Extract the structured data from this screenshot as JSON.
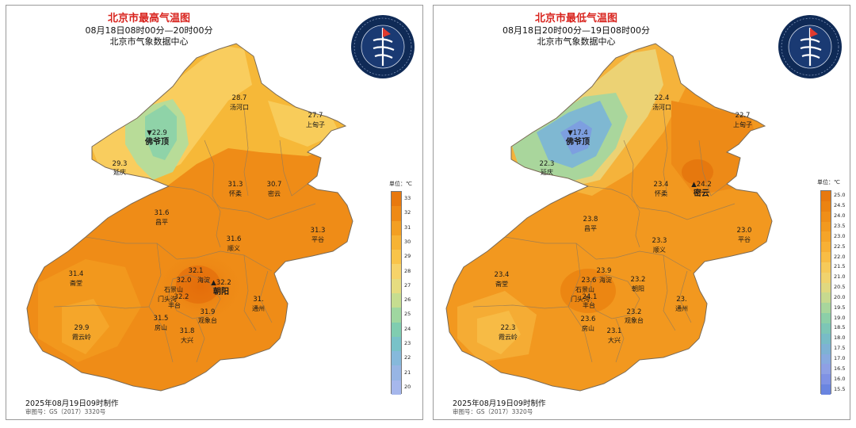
{
  "panels": [
    {
      "title": "北京市最高气温图",
      "subtitle": "08月18日08时00分—20时00分",
      "agency": "北京市气象数据中心",
      "made": "2025年08月19日09时制作",
      "review": "审图号：GS（2017）3320号",
      "legend_unit": "单位：℃",
      "legend_ticks": [
        "33",
        "32",
        "31",
        "30",
        "29",
        "28",
        "27",
        "26",
        "25",
        "24",
        "23",
        "22",
        "21",
        "20"
      ],
      "legend_colors": [
        "#e8790e",
        "#ee8a16",
        "#f39f22",
        "#f7b334",
        "#f9c44a",
        "#f6d36a",
        "#e6dc80",
        "#c6dd90",
        "#9fd7a0",
        "#80cdb0",
        "#78c2c8",
        "#86b9db",
        "#97b5e4",
        "#a6b7ec"
      ],
      "stations": [
        {
          "value": "28.7",
          "name": "汤河口"
        },
        {
          "value": "27.7",
          "name": "上甸子"
        },
        {
          "value": "▼22.9",
          "name": "佛爷顶"
        },
        {
          "value": "29.3",
          "name": "延庆"
        },
        {
          "value": "31.3",
          "name": "怀柔"
        },
        {
          "value": "30.7",
          "name": "密云"
        },
        {
          "value": "31.6",
          "name": "昌平"
        },
        {
          "value": "31.3",
          "name": "平谷"
        },
        {
          "value": "31.6",
          "name": "顺义"
        },
        {
          "value": "31.4",
          "name": "斋堂"
        },
        {
          "value": "32.1",
          "name": "海淀"
        },
        {
          "value": "32.0",
          "name": "石景山"
        },
        {
          "value": "32.2",
          "name": "门头沟"
        },
        {
          "value": "▲32.2",
          "name": "朝阳"
        },
        {
          "value": "31.",
          "name": "通州"
        },
        {
          "value": "",
          "name": "丰台"
        },
        {
          "value": "31.9",
          "name": "观象台"
        },
        {
          "value": "31.5",
          "name": "房山"
        },
        {
          "value": "31.8",
          "name": "大兴"
        },
        {
          "value": "29.9",
          "name": "霞云岭"
        }
      ]
    },
    {
      "title": "北京市最低气温图",
      "subtitle": "08月18日20时00分—19日08时00分",
      "agency": "北京市气象数据中心",
      "made": "2025年08月19日09时制作",
      "review": "审图号：GS（2017）3320号",
      "legend_unit": "单位：℃",
      "legend_ticks": [
        "25.0",
        "24.5",
        "24.0",
        "23.5",
        "23.0",
        "22.5",
        "22.0",
        "21.5",
        "21.0",
        "20.5",
        "20.0",
        "19.5",
        "19.0",
        "18.5",
        "18.0",
        "17.5",
        "17.0",
        "16.5",
        "16.0",
        "15.5"
      ],
      "legend_colors": [
        "#e8790e",
        "#eb8312",
        "#ef8e18",
        "#f2991f",
        "#f5a429",
        "#f7b035",
        "#f8bd45",
        "#f6ca5a",
        "#f0d36e",
        "#e0d880",
        "#c7d98f",
        "#a8d69c",
        "#8ccfa8",
        "#7dc6b6",
        "#78bcc6",
        "#7eb2d4",
        "#88aadf",
        "#8ea0e4",
        "#7f92e4",
        "#6a85e0"
      ],
      "stations": [
        {
          "value": "22.4",
          "name": "汤河口"
        },
        {
          "value": "22.7",
          "name": "上甸子"
        },
        {
          "value": "▼17.4",
          "name": "佛爷顶"
        },
        {
          "value": "22.3",
          "name": "延庆"
        },
        {
          "value": "23.4",
          "name": "怀柔"
        },
        {
          "value": "▲24.2",
          "name": "密云"
        },
        {
          "value": "23.8",
          "name": "昌平"
        },
        {
          "value": "23.0",
          "name": "平谷"
        },
        {
          "value": "23.3",
          "name": "顺义"
        },
        {
          "value": "23.4",
          "name": "斋堂"
        },
        {
          "value": "23.9",
          "name": "海淀"
        },
        {
          "value": "23.6",
          "name": "石景山"
        },
        {
          "value": "24.1",
          "name": "门头沟"
        },
        {
          "value": "23.2",
          "name": "朝阳"
        },
        {
          "value": "23.",
          "name": "通州"
        },
        {
          "value": "",
          "name": "丰台"
        },
        {
          "value": "23.2",
          "name": "观象台"
        },
        {
          "value": "23.6",
          "name": "房山"
        },
        {
          "value": "23.1",
          "name": "大兴"
        },
        {
          "value": "22.3",
          "name": "霞云岭"
        }
      ]
    }
  ]
}
